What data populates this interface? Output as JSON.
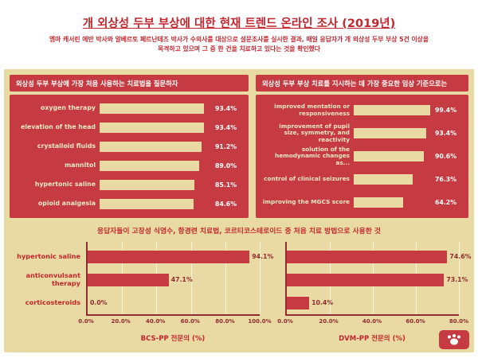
{
  "page": {
    "title": "개 외상성 두부 부상에 대한 현재 트렌드 온라인 조사 (2019년)",
    "subtitle_line1": "엠마 캐서린 에반 박사와 알베르토 페르난데즈 박사가 수의사를 대상으로 설문조사를 실시한 결과, 매일 응답자가 개 외상성 두부 부상 5건 이상을",
    "subtitle_line2": "목격하고 있으며 그 중 한 건을 치료하고 있다는 것을 확인했다"
  },
  "colors": {
    "red": "#c63b41",
    "text-red": "#c1272f",
    "dark-red": "#8f2b31",
    "beige": "#e9d9a2",
    "cream": "#f4e8c4"
  },
  "chart_data": [
    {
      "type": "bar",
      "orientation": "horizontal",
      "title": "외상성 두부 부상에 가장 처음 사용하는 치료법을 질문하자",
      "categories": [
        "oxygen therapy",
        "elevation of the head",
        "crystalloid fluids",
        "mannitol",
        "hypertonic saline",
        "opioid analgesia"
      ],
      "values": [
        93.4,
        93.4,
        91.2,
        89.0,
        85.1,
        84.6
      ],
      "value_labels": [
        "93.4%",
        "93.4%",
        "91.2%",
        "89.0%",
        "85.1%",
        "84.6%"
      ],
      "xlim": [
        0,
        100
      ],
      "bar_color": "#e9d9a2",
      "background": "#c63b41"
    },
    {
      "type": "bar",
      "orientation": "horizontal",
      "title": "외상성 두부 부상 치료를 지시하는 데 가장 중요한 임상 기준으로는",
      "categories": [
        "improved mentation or responsiveness",
        "improvement of pupil size, symmetry, and reactivity",
        "solution of the hemodynamic changes as...",
        "control of clinical seizures",
        "improving the MGCS score"
      ],
      "values": [
        99.4,
        93.4,
        90.6,
        76.3,
        64.2
      ],
      "value_labels": [
        "99.4%",
        "93.4%",
        "90.6%",
        "76.3%",
        "64.2%"
      ],
      "xlim": [
        0,
        100
      ],
      "bar_color": "#e9d9a2",
      "background": "#c63b41"
    },
    {
      "type": "bar",
      "orientation": "horizontal",
      "title": "응답자들이 고장성 식염수, 항경련 치료법, 코르티코스테로이드 중 처음 치료 방법으로 사용한 것",
      "categories": [
        "hypertonic saline",
        "anticonvulsant therapy",
        "corticosteroids"
      ],
      "grid": true,
      "legend": false,
      "bar_color": "#c63b41",
      "series": [
        {
          "name": "BCS-PP 전문의 (%)",
          "values": [
            94.1,
            47.1,
            0.0
          ],
          "value_labels": [
            "94.1%",
            "47.1%",
            "0.0%"
          ],
          "xlim": [
            0,
            100
          ],
          "ticks": [
            "0.0%",
            "20.0%",
            "40.0%",
            "60.0%",
            "80.0%",
            "100.0%"
          ]
        },
        {
          "name": "DVM-PP 전문의 (%)",
          "values": [
            74.6,
            73.1,
            10.4
          ],
          "value_labels": [
            "74.6%",
            "73.1%",
            "10.4%"
          ],
          "xlim": [
            0,
            80
          ],
          "ticks": [
            "0.0%",
            "20.0%",
            "40.0%",
            "60.0%",
            "80.0%"
          ]
        }
      ]
    }
  ]
}
